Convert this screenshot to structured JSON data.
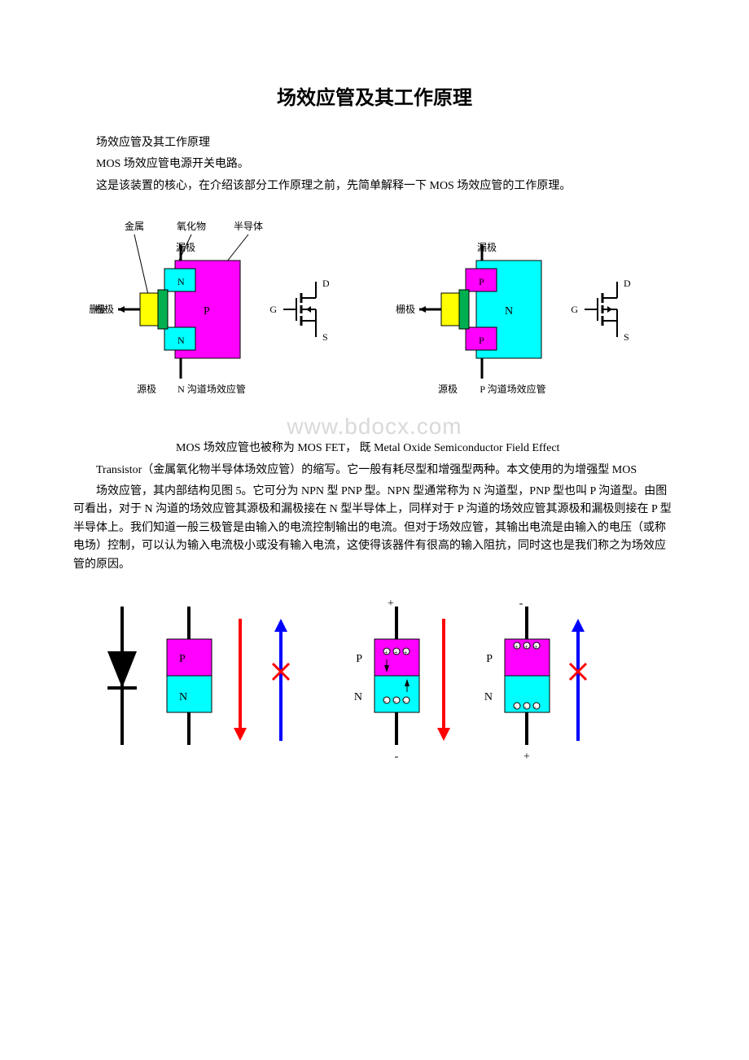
{
  "title": "场效应管及其工作原理",
  "p1": "场效应管及其工作原理",
  "p2": "MOS 场效应管电源开关电路。",
  "p3": "这是该装置的核心，在介绍该部分工作原理之前，先简单解释一下 MOS 场效应管的工作原理。",
  "p4_lead": "MOS 场效应管也被称为 MOS FET， 既 Metal Oxide Semiconductor Field Effect",
  "p5": "Transistor（金属氧化物半导体场效应管）的缩写。它一般有耗尽型和增强型两种。本文使用的为增强型 MOS",
  "p6": "场效应管，其内部结构见图 5。它可分为 NPN 型 PNP 型。NPN 型通常称为 N 沟道型，PNP 型也叫 P 沟道型。由图可看出，对于 N 沟道的场效应管其源极和漏极接在 N 型半导体上，同样对于 P 沟道的场效应管其源极和漏极则接在 P 型半导体上。我们知道一般三极管是由输入的电流控制输出的电流。但对于场效应管，其输出电流是由输入的电压（或称电场）控制，可以认为输入电流极小或没有输入电流，这使得该器件有很高的输入阻抗，同时这也是我们称之为场效应管的原因。",
  "watermark": "www.bdocx.com",
  "fig1": {
    "labels": {
      "metal": "金属",
      "oxide": "氧化物",
      "semi": "半导体",
      "drain": "漏极",
      "gate": "栅极",
      "source": "源极",
      "nch": "N 沟道场效应管",
      "pch": "P 沟道场效应管",
      "D": "D",
      "G": "G",
      "S": "S",
      "P": "P",
      "N": "N"
    },
    "colors": {
      "magenta": "#ff00ff",
      "cyan": "#00ffff",
      "yellow": "#ffff00",
      "green": "#00b050",
      "black": "#000000",
      "red": "#ff0000",
      "blue": "#0000ff",
      "white": "#ffffff"
    },
    "font": {
      "label_size": 12
    }
  }
}
